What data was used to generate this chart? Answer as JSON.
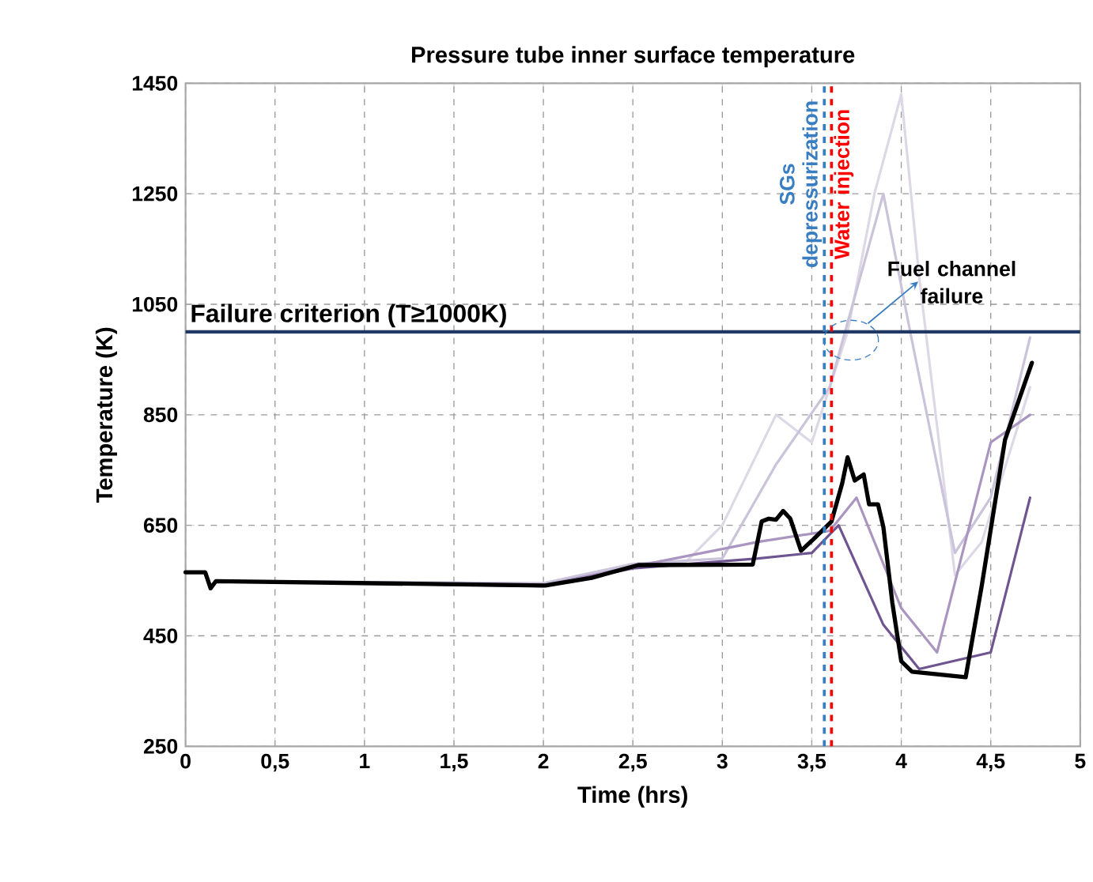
{
  "chart_data": {
    "type": "line",
    "title": "Pressure tube inner surface temperature",
    "xlabel": "Time (hrs)",
    "ylabel": "Temperature (K)",
    "xlim": [
      0,
      5
    ],
    "ylim": [
      250,
      1450
    ],
    "xticks": [
      0,
      {
        "value": 0.5,
        "label": "0,5"
      },
      1,
      {
        "value": 1.5,
        "label": "1,5"
      },
      2,
      {
        "value": 2.5,
        "label": "2,5"
      },
      3,
      {
        "value": 3.5,
        "label": "3,5"
      },
      4,
      {
        "value": 4.5,
        "label": "4,5"
      },
      5
    ],
    "yticks": [
      250,
      450,
      650,
      850,
      1050,
      1250,
      1450
    ],
    "grid": true,
    "marker": "none",
    "series": [
      {
        "color": "#dcd8e6",
        "x": [
          0,
          0.11,
          0.14,
          0.17,
          2.0,
          2.5,
          2.8,
          3.0,
          3.3,
          3.5,
          3.7,
          3.85,
          4.0,
          4.1,
          4.3,
          4.45,
          4.72
        ],
        "values": [
          565,
          565,
          540,
          549,
          545,
          580,
          585,
          650,
          850,
          800,
          1000,
          1250,
          1430,
          1100,
          560,
          620,
          900
        ]
      },
      {
        "color": "#cbc3da",
        "x": [
          0,
          0.11,
          0.14,
          0.17,
          2.0,
          2.5,
          3.0,
          3.3,
          3.6,
          3.9,
          4.05,
          4.3,
          4.5,
          4.72
        ],
        "values": [
          565,
          565,
          540,
          549,
          545,
          580,
          590,
          760,
          900,
          1250,
          1000,
          600,
          700,
          990
        ]
      },
      {
        "color": "#a995c0",
        "x": [
          0,
          0.11,
          0.14,
          0.17,
          2.0,
          2.5,
          3.2,
          3.6,
          3.75,
          4.0,
          4.2,
          4.5,
          4.72
        ],
        "values": [
          565,
          565,
          540,
          549,
          542,
          575,
          620,
          640,
          700,
          500,
          420,
          800,
          850
        ]
      },
      {
        "color": "#6f5590",
        "x": [
          0,
          0.11,
          0.14,
          0.17,
          2.0,
          2.5,
          3.2,
          3.5,
          3.65,
          3.9,
          4.1,
          4.5,
          4.72
        ],
        "values": [
          565,
          565,
          540,
          549,
          540,
          572,
          590,
          600,
          650,
          470,
          390,
          420,
          700
        ]
      },
      {
        "color": "#000000",
        "x": [
          0,
          0.11,
          0.14,
          0.17,
          2.01,
          2.27,
          2.53,
          3.17,
          3.22,
          3.26,
          3.3,
          3.34,
          3.38,
          3.44,
          3.51,
          3.61,
          3.67,
          3.7,
          3.74,
          3.79,
          3.82,
          3.87,
          3.9,
          3.95,
          4.0,
          4.06,
          4.36,
          4.45,
          4.58,
          4.73
        ],
        "values": [
          565,
          565,
          536,
          549,
          541,
          555,
          578,
          579,
          657,
          662,
          660,
          676,
          662,
          604,
          625,
          657,
          726,
          773,
          731,
          742,
          688,
          688,
          647,
          510,
          404,
          385,
          375,
          541,
          805,
          944
        ]
      }
    ],
    "ref_lines": [
      {
        "axis": "y",
        "value": 1000,
        "label": "Failure criterion (T≥1000K)",
        "color": "#1f3864",
        "line_style": "solid"
      },
      {
        "axis": "x",
        "value": 3.57,
        "label": "SGs depressurization",
        "color": "#3a7ec2",
        "line_style": "dashed"
      },
      {
        "axis": "x",
        "value": 3.61,
        "label": "Water injection",
        "color": "#ff0000",
        "line_style": "dashed"
      }
    ],
    "annotations": [
      {
        "text": "Fuel channel failure",
        "x": 3.72,
        "y": 985
      }
    ]
  }
}
